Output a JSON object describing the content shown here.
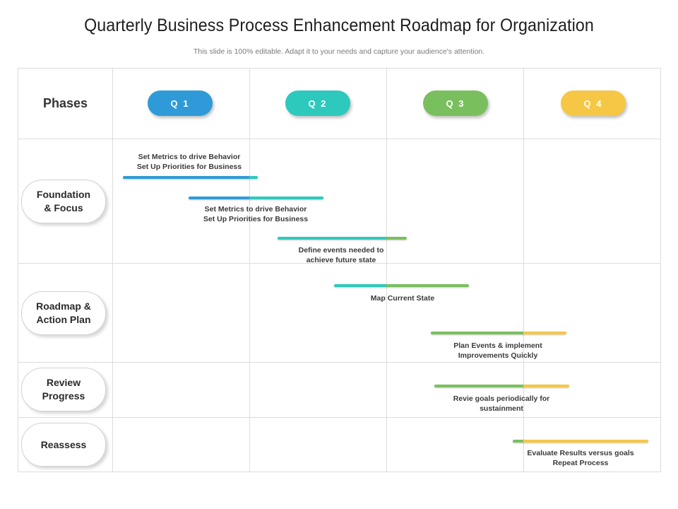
{
  "header": {
    "title": "Quarterly Business Process Enhancement Roadmap for Organization",
    "subtitle": "This slide is 100% editable. Adapt it to your needs and capture your audience's attention."
  },
  "table": {
    "phases_header": "Phases",
    "quarters": [
      {
        "label": "Q 1",
        "color": "#2e9bd8"
      },
      {
        "label": "Q 2",
        "color": "#2ec9bd"
      },
      {
        "label": "Q 3",
        "color": "#7abf5e"
      },
      {
        "label": "Q 4",
        "color": "#f5c744"
      }
    ],
    "phases": [
      {
        "label": "Foundation\n& Focus"
      },
      {
        "label": "Roadmap &\nAction Plan"
      },
      {
        "label": "Review\nProgress"
      },
      {
        "label": "Reassess"
      }
    ]
  },
  "colors": {
    "blue": "#2e9bd8",
    "teal": "#2ec9bd",
    "green": "#7abf5e",
    "yellow": "#f5c744",
    "grid": "#dcdcdc"
  },
  "tasks": [
    {
      "label": "Set Metrics to drive Behavior\nSet Up Priorities for Business",
      "quarter_span": "Q1 – Q2"
    },
    {
      "label": "Set Metrics to drive Behavior\nSet Up Priorities for Business",
      "quarter_span": "Q1 – Q2"
    },
    {
      "label": "Define events needed to\nachieve future state",
      "quarter_span": "Q2 – Q3"
    },
    {
      "label": "Map Current State",
      "quarter_span": "Q2 – Q3"
    },
    {
      "label": "Plan Events & implement\nImprovements Quickly",
      "quarter_span": "Q3 – Q4"
    },
    {
      "label": "Revie goals periodically for\nsustainment",
      "quarter_span": "Q3 – Q4"
    },
    {
      "label": "Evaluate Results versus goals\nRepeat Process",
      "quarter_span": "Q3 – Q4"
    }
  ]
}
